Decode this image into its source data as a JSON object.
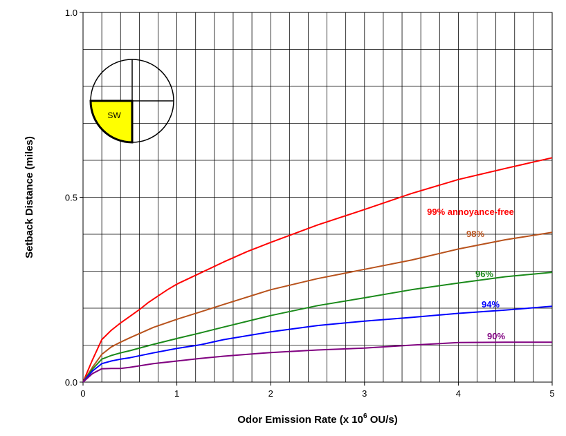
{
  "chart_data": {
    "type": "line",
    "xlabel_prefix": "Odor Emission Rate (x 10",
    "xlabel_exp": "6",
    "xlabel_suffix": " OU/s)",
    "ylabel": "Setback Distance (miles)",
    "xlim": [
      0,
      5
    ],
    "ylim": [
      0,
      1.0
    ],
    "x_ticks": [
      "0",
      "1",
      "2",
      "3",
      "4",
      "5"
    ],
    "y_ticks": [
      "0.0",
      "0.5",
      "1.0"
    ],
    "grid": true,
    "compass": {
      "highlighted_quadrant": "SW",
      "label": "SW",
      "highlight_color": "#ffff00"
    },
    "series": [
      {
        "name": "99% annoyance-free",
        "color": "#ff0000",
        "x": [
          0,
          0.1,
          0.2,
          0.3,
          0.4,
          0.5,
          0.6,
          0.7,
          0.8,
          0.9,
          1.0,
          1.25,
          1.5,
          1.75,
          2.0,
          2.5,
          3.0,
          3.5,
          4.0,
          4.5,
          5.0
        ],
        "y": [
          0,
          0.06,
          0.115,
          0.14,
          0.16,
          0.178,
          0.196,
          0.216,
          0.233,
          0.25,
          0.265,
          0.295,
          0.325,
          0.353,
          0.378,
          0.425,
          0.467,
          0.51,
          0.548,
          0.578,
          0.607
        ]
      },
      {
        "name": "98%",
        "color": "#b8521c",
        "x": [
          0,
          0.1,
          0.2,
          0.3,
          0.4,
          0.5,
          0.75,
          1.0,
          1.25,
          1.5,
          2.0,
          2.5,
          3.0,
          3.5,
          4.0,
          4.5,
          5.0
        ],
        "y": [
          0,
          0.04,
          0.075,
          0.095,
          0.108,
          0.12,
          0.148,
          0.17,
          0.19,
          0.21,
          0.25,
          0.28,
          0.305,
          0.33,
          0.36,
          0.385,
          0.405
        ]
      },
      {
        "name": "96%",
        "color": "#1a8a1a",
        "x": [
          0,
          0.1,
          0.2,
          0.3,
          0.4,
          0.5,
          0.75,
          1.0,
          1.25,
          1.5,
          2.0,
          2.5,
          3.0,
          3.5,
          4.0,
          4.5,
          5.0
        ],
        "y": [
          0,
          0.035,
          0.062,
          0.072,
          0.079,
          0.085,
          0.102,
          0.118,
          0.133,
          0.149,
          0.18,
          0.207,
          0.228,
          0.25,
          0.268,
          0.285,
          0.297
        ]
      },
      {
        "name": "94%",
        "color": "#0000ff",
        "x": [
          0,
          0.1,
          0.2,
          0.3,
          0.4,
          0.5,
          0.75,
          1.0,
          1.25,
          1.5,
          2.0,
          2.5,
          3.0,
          3.5,
          4.0,
          4.5,
          5.0
        ],
        "y": [
          0,
          0.03,
          0.05,
          0.057,
          0.062,
          0.066,
          0.079,
          0.091,
          0.101,
          0.115,
          0.136,
          0.153,
          0.165,
          0.175,
          0.186,
          0.195,
          0.205
        ]
      },
      {
        "name": "90%",
        "color": "#800080",
        "x": [
          0,
          0.1,
          0.2,
          0.3,
          0.4,
          0.5,
          0.75,
          1.0,
          1.25,
          1.5,
          2.0,
          2.5,
          3.0,
          3.5,
          4.0,
          4.5,
          5.0
        ],
        "y": [
          0,
          0.023,
          0.036,
          0.037,
          0.037,
          0.04,
          0.05,
          0.057,
          0.064,
          0.07,
          0.08,
          0.087,
          0.092,
          0.1,
          0.107,
          0.108,
          0.108
        ]
      }
    ]
  }
}
